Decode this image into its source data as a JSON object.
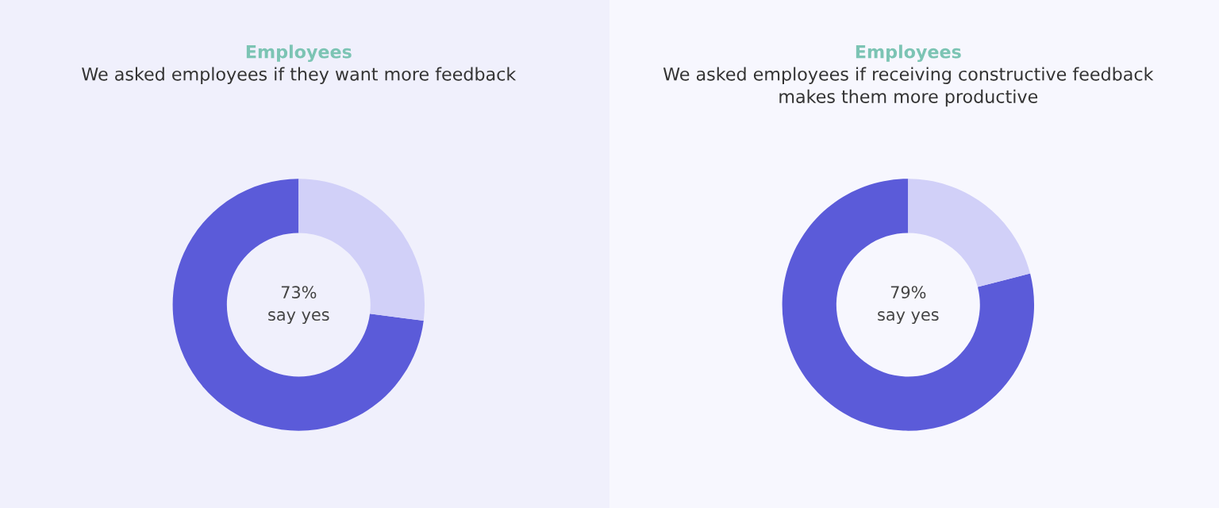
{
  "chart_data": [
    {
      "type": "donut",
      "title": "Employees",
      "subtitle": "We asked employees if they want more feedback",
      "categories": [
        null,
        null
      ],
      "values": [
        73,
        27
      ],
      "colors": [
        "#5b5bd9",
        "#d1d0f8"
      ],
      "annotations": [
        "73%\nsay yes"
      ],
      "legend": false
    },
    {
      "type": "donut",
      "title": "Employees",
      "subtitle": "We asked employees if receiving constructive feedback\nmakes them more productive",
      "categories": [
        null,
        null
      ],
      "values": [
        79,
        21
      ],
      "colors": [
        "#5b5bd9",
        "#d1d0f8"
      ],
      "annotations": [
        "79%\nsay yes"
      ],
      "legend": false
    }
  ]
}
